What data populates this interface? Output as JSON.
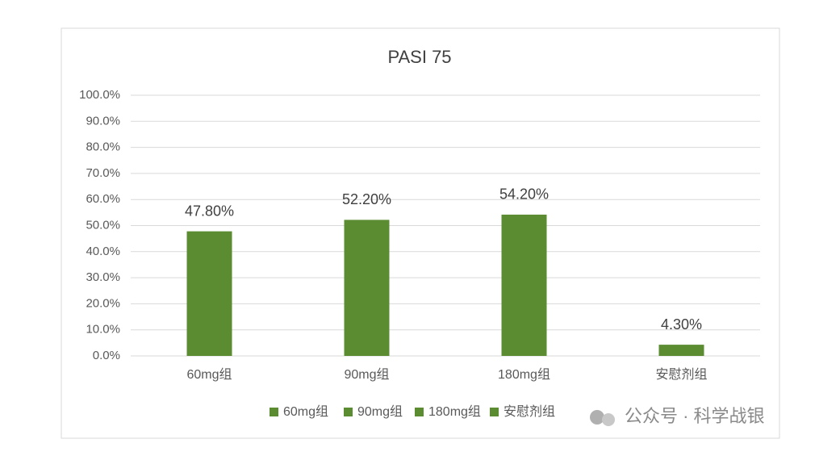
{
  "chart_data": {
    "type": "bar",
    "title": "PASI 75",
    "categories": [
      "60mg组",
      "90mg组",
      "180mg组",
      "安慰剂组"
    ],
    "values": [
      47.8,
      52.2,
      54.2,
      4.3
    ],
    "value_labels": [
      "47.80%",
      "52.20%",
      "54.20%",
      "4.30%"
    ],
    "color": "#5b8c32",
    "ylim": [
      0,
      100
    ],
    "yticks": [
      {
        "value": 0,
        "label": "0.0%"
      },
      {
        "value": 10,
        "label": "10.0%"
      },
      {
        "value": 20,
        "label": "20.0%"
      },
      {
        "value": 30,
        "label": "30.0%"
      },
      {
        "value": 40,
        "label": "40.0%"
      },
      {
        "value": 50,
        "label": "50.0%"
      },
      {
        "value": 60,
        "label": "60.0%"
      },
      {
        "value": 70,
        "label": "70.0%"
      },
      {
        "value": 80,
        "label": "80.0%"
      },
      {
        "value": 90,
        "label": "90.0%"
      },
      {
        "value": 100,
        "label": "100.0%"
      }
    ],
    "grid": true,
    "legend": "bottom"
  },
  "watermark": "公众号 · 科学战银"
}
